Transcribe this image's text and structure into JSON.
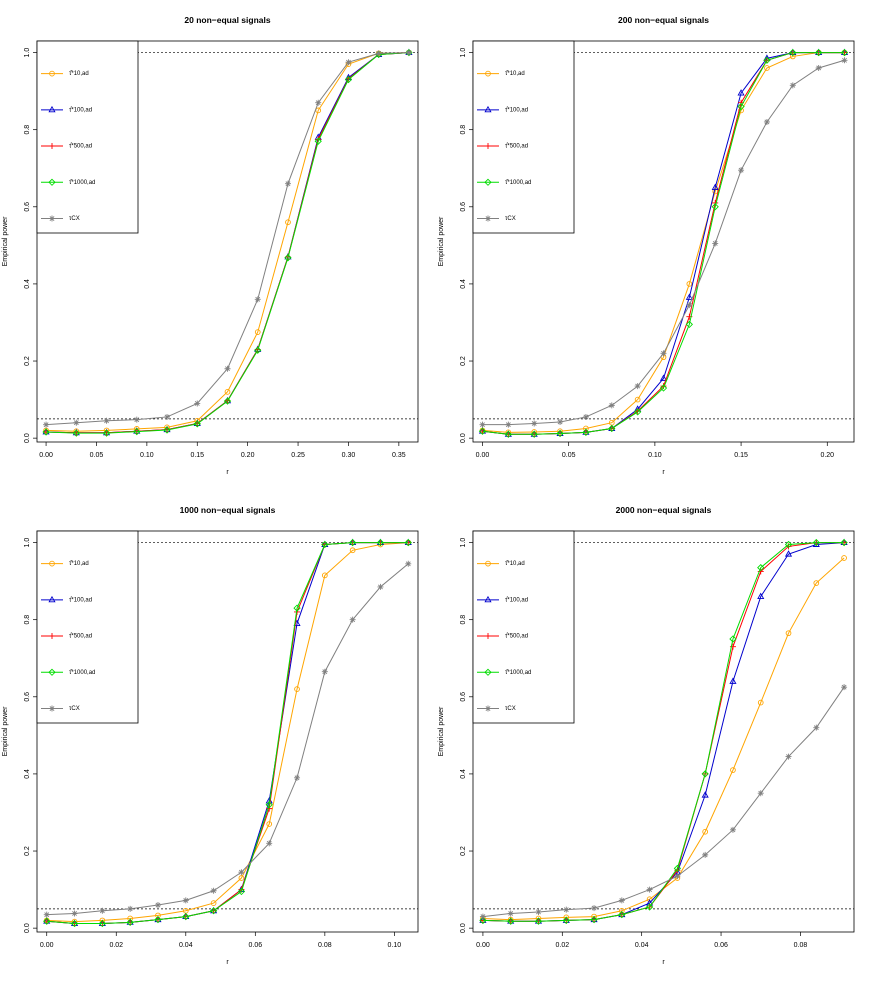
{
  "chart_data": [
    {
      "type": "line",
      "title": "20 non−equal signals",
      "xlabel": "r",
      "ylabel": "Empirical power",
      "xlim": [
        -0.009,
        0.369
      ],
      "ylim": [
        -0.01,
        1.03
      ],
      "xticks": [
        "0.00",
        "0.05",
        "0.10",
        "0.15",
        "0.20",
        "0.25",
        "0.30",
        "0.35"
      ],
      "yticks": [
        "0.0",
        "0.2",
        "0.4",
        "0.6",
        "0.8",
        "1.0"
      ],
      "reference_lines": [
        0.05,
        1.0
      ],
      "legend": {
        "placement": "top-left",
        "entries": [
          "τ̂*10,ad",
          "τ̂*100,ad",
          "τ̂*500,ad",
          "τ̂*1000,ad",
          "τCX"
        ]
      },
      "x": [
        0.0,
        0.03,
        0.06,
        0.09,
        0.12,
        0.15,
        0.18,
        0.21,
        0.24,
        0.27,
        0.3,
        0.33,
        0.36
      ],
      "series": [
        {
          "name": "τ̂*10,ad",
          "color": "#FFA500",
          "marker": "circle",
          "values": [
            0.02,
            0.018,
            0.02,
            0.024,
            0.028,
            0.045,
            0.12,
            0.275,
            0.56,
            0.85,
            0.97,
            0.998,
            1.0
          ]
        },
        {
          "name": "τ̂*100,ad",
          "color": "#0000CD",
          "marker": "triangle",
          "values": [
            0.016,
            0.014,
            0.014,
            0.018,
            0.022,
            0.038,
            0.097,
            0.23,
            0.47,
            0.78,
            0.935,
            0.995,
            1.0
          ]
        },
        {
          "name": "τ̂*500,ad",
          "color": "#FF0000",
          "marker": "plus",
          "values": [
            0.016,
            0.014,
            0.014,
            0.018,
            0.022,
            0.038,
            0.097,
            0.23,
            0.47,
            0.775,
            0.932,
            0.995,
            1.0
          ]
        },
        {
          "name": "τ̂*1000,ad",
          "color": "#00DD00",
          "marker": "diamond",
          "values": [
            0.016,
            0.013,
            0.013,
            0.017,
            0.021,
            0.037,
            0.096,
            0.228,
            0.468,
            0.77,
            0.93,
            0.995,
            1.0
          ]
        },
        {
          "name": "τCX",
          "color": "#808080",
          "marker": "star",
          "values": [
            0.035,
            0.04,
            0.045,
            0.048,
            0.055,
            0.09,
            0.18,
            0.36,
            0.66,
            0.87,
            0.975,
            0.998,
            1.0
          ]
        }
      ]
    },
    {
      "type": "line",
      "title": "200 non−equal signals",
      "xlabel": "r",
      "ylabel": "Empirical power",
      "xlim": [
        -0.0055,
        0.2155
      ],
      "ylim": [
        -0.01,
        1.03
      ],
      "xticks": [
        "0.00",
        "0.05",
        "0.10",
        "0.15",
        "0.20"
      ],
      "yticks": [
        "0.0",
        "0.2",
        "0.4",
        "0.6",
        "0.8",
        "1.0"
      ],
      "reference_lines": [
        0.05,
        1.0
      ],
      "legend": {
        "placement": "top-left",
        "entries": [
          "τ̂*10,ad",
          "τ̂*100,ad",
          "τ̂*500,ad",
          "τ̂*1000,ad",
          "τCX"
        ]
      },
      "x": [
        0.0,
        0.015,
        0.03,
        0.045,
        0.06,
        0.075,
        0.09,
        0.105,
        0.12,
        0.135,
        0.15,
        0.165,
        0.18,
        0.195,
        0.21
      ],
      "series": [
        {
          "name": "τ̂*10,ad",
          "color": "#FFA500",
          "marker": "circle",
          "values": [
            0.02,
            0.015,
            0.016,
            0.018,
            0.025,
            0.04,
            0.1,
            0.21,
            0.4,
            0.64,
            0.85,
            0.96,
            0.99,
            1.0,
            1.0
          ]
        },
        {
          "name": "τ̂*100,ad",
          "color": "#0000CD",
          "marker": "triangle",
          "values": [
            0.018,
            0.01,
            0.01,
            0.012,
            0.015,
            0.025,
            0.075,
            0.155,
            0.365,
            0.65,
            0.895,
            0.985,
            1.0,
            1.0,
            1.0
          ]
        },
        {
          "name": "τ̂*500,ad",
          "color": "#FF0000",
          "marker": "plus",
          "values": [
            0.018,
            0.01,
            0.01,
            0.012,
            0.015,
            0.025,
            0.07,
            0.135,
            0.315,
            0.61,
            0.87,
            0.98,
            1.0,
            1.0,
            1.0
          ]
        },
        {
          "name": "τ̂*1000,ad",
          "color": "#00DD00",
          "marker": "diamond",
          "values": [
            0.018,
            0.01,
            0.01,
            0.012,
            0.015,
            0.025,
            0.068,
            0.13,
            0.295,
            0.6,
            0.86,
            0.98,
            1.0,
            1.0,
            1.0
          ]
        },
        {
          "name": "τCX",
          "color": "#808080",
          "marker": "star",
          "values": [
            0.035,
            0.035,
            0.038,
            0.042,
            0.055,
            0.085,
            0.135,
            0.22,
            0.345,
            0.505,
            0.695,
            0.82,
            0.915,
            0.96,
            0.98
          ]
        }
      ]
    },
    {
      "type": "line",
      "title": "1000 non−equal signals",
      "xlabel": "r",
      "ylabel": "Empirical power",
      "xlim": [
        -0.0028,
        0.1068
      ],
      "ylim": [
        -0.01,
        1.03
      ],
      "xticks": [
        "0.00",
        "0.02",
        "0.04",
        "0.06",
        "0.08",
        "0.10"
      ],
      "yticks": [
        "0.0",
        "0.2",
        "0.4",
        "0.6",
        "0.8",
        "1.0"
      ],
      "reference_lines": [
        0.05,
        1.0
      ],
      "legend": {
        "placement": "top-left",
        "entries": [
          "τ̂*10,ad",
          "τ̂*100,ad",
          "τ̂*500,ad",
          "τ̂*1000,ad",
          "τCX"
        ]
      },
      "x": [
        0.0,
        0.008,
        0.016,
        0.024,
        0.032,
        0.04,
        0.048,
        0.056,
        0.064,
        0.072,
        0.08,
        0.088,
        0.096,
        0.104
      ],
      "series": [
        {
          "name": "τ̂*10,ad",
          "color": "#FFA500",
          "marker": "circle",
          "values": [
            0.02,
            0.017,
            0.02,
            0.025,
            0.033,
            0.045,
            0.065,
            0.13,
            0.27,
            0.62,
            0.915,
            0.98,
            0.995,
            1.0
          ]
        },
        {
          "name": "τ̂*100,ad",
          "color": "#0000CD",
          "marker": "triangle",
          "values": [
            0.018,
            0.012,
            0.012,
            0.015,
            0.022,
            0.03,
            0.045,
            0.1,
            0.33,
            0.79,
            0.995,
            1.0,
            1.0,
            1.0
          ]
        },
        {
          "name": "τ̂*500,ad",
          "color": "#FF0000",
          "marker": "plus",
          "values": [
            0.018,
            0.012,
            0.012,
            0.015,
            0.022,
            0.03,
            0.045,
            0.1,
            0.31,
            0.82,
            0.995,
            1.0,
            1.0,
            1.0
          ]
        },
        {
          "name": "τ̂*1000,ad",
          "color": "#00DD00",
          "marker": "diamond",
          "values": [
            0.018,
            0.012,
            0.012,
            0.015,
            0.022,
            0.03,
            0.045,
            0.095,
            0.32,
            0.83,
            0.995,
            1.0,
            1.0,
            1.0
          ]
        },
        {
          "name": "τCX",
          "color": "#808080",
          "marker": "star",
          "values": [
            0.035,
            0.038,
            0.045,
            0.05,
            0.06,
            0.072,
            0.097,
            0.145,
            0.22,
            0.39,
            0.665,
            0.8,
            0.885,
            0.945
          ]
        }
      ]
    },
    {
      "type": "line",
      "title": "2000 non−equal signals",
      "xlabel": "r",
      "ylabel": "Empirical power",
      "xlim": [
        -0.0025,
        0.0935
      ],
      "ylim": [
        -0.01,
        1.03
      ],
      "xticks": [
        "0.00",
        "0.02",
        "0.04",
        "0.06",
        "0.08"
      ],
      "yticks": [
        "0.0",
        "0.2",
        "0.4",
        "0.6",
        "0.8",
        "1.0"
      ],
      "reference_lines": [
        0.05,
        1.0
      ],
      "legend": {
        "placement": "top-left",
        "entries": [
          "τ̂*10,ad",
          "τ̂*100,ad",
          "τ̂*500,ad",
          "τ̂*1000,ad",
          "τCX"
        ]
      },
      "x": [
        0.0,
        0.007,
        0.014,
        0.021,
        0.028,
        0.035,
        0.042,
        0.049,
        0.056,
        0.063,
        0.07,
        0.077,
        0.084,
        0.091
      ],
      "series": [
        {
          "name": "τ̂*10,ad",
          "color": "#FFA500",
          "marker": "circle",
          "values": [
            0.025,
            0.022,
            0.025,
            0.028,
            0.03,
            0.045,
            0.075,
            0.13,
            0.25,
            0.41,
            0.585,
            0.765,
            0.895,
            0.96
          ]
        },
        {
          "name": "τ̂*100,ad",
          "color": "#0000CD",
          "marker": "triangle",
          "values": [
            0.02,
            0.018,
            0.018,
            0.02,
            0.022,
            0.035,
            0.065,
            0.145,
            0.345,
            0.64,
            0.86,
            0.97,
            0.995,
            1.0
          ]
        },
        {
          "name": "τ̂*500,ad",
          "color": "#FF0000",
          "marker": "plus",
          "values": [
            0.02,
            0.018,
            0.018,
            0.02,
            0.022,
            0.035,
            0.055,
            0.15,
            0.4,
            0.73,
            0.925,
            0.99,
            1.0,
            1.0
          ]
        },
        {
          "name": "τ̂*1000,ad",
          "color": "#00DD00",
          "marker": "diamond",
          "values": [
            0.02,
            0.018,
            0.018,
            0.02,
            0.022,
            0.035,
            0.055,
            0.155,
            0.4,
            0.75,
            0.935,
            0.995,
            1.0,
            1.0
          ]
        },
        {
          "name": "τCX",
          "color": "#808080",
          "marker": "star",
          "values": [
            0.03,
            0.038,
            0.042,
            0.048,
            0.052,
            0.072,
            0.1,
            0.135,
            0.19,
            0.255,
            0.35,
            0.445,
            0.52,
            0.625
          ]
        }
      ]
    }
  ]
}
